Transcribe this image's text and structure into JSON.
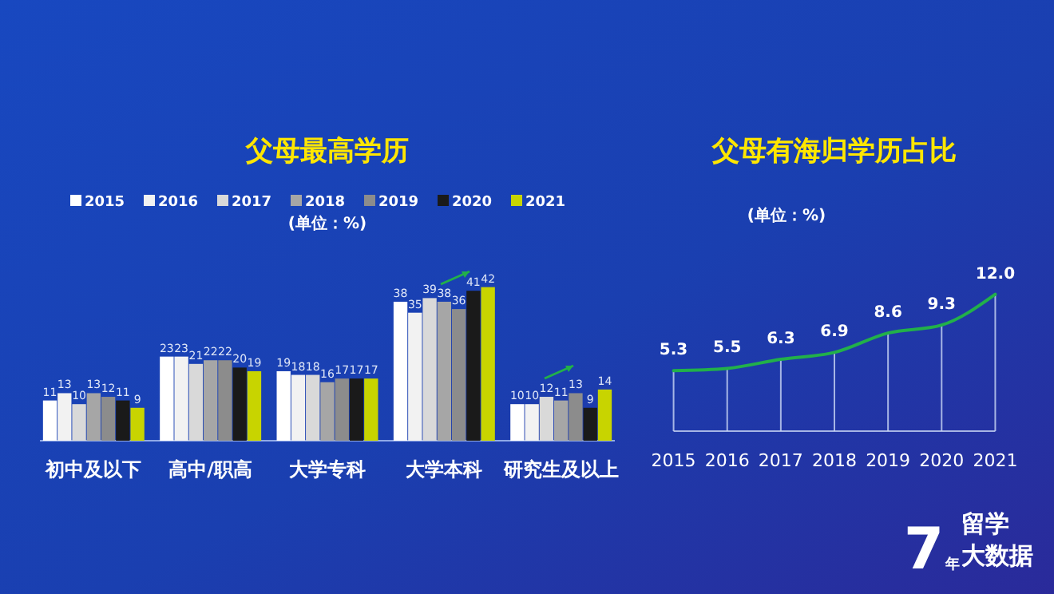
{
  "chart_data": [
    {
      "type": "bar",
      "title": "父母最高学历",
      "subtitle": "(单位：%)",
      "categories": [
        "初中及以下",
        "高中/职高",
        "大学专科",
        "大学本科",
        "研究生及以上"
      ],
      "tick_labels": "x",
      "data_labels": true,
      "legend": "top",
      "grid": false,
      "series": [
        {
          "name": "2015",
          "color": "#ffffff",
          "values": [
            11,
            23,
            19,
            38,
            10
          ]
        },
        {
          "name": "2016",
          "color": "#f2f2f2",
          "values": [
            13,
            23,
            18,
            35,
            10
          ]
        },
        {
          "name": "2017",
          "color": "#d9d9d9",
          "values": [
            10,
            21,
            18,
            39,
            12
          ]
        },
        {
          "name": "2018",
          "color": "#a6a6a6",
          "values": [
            13,
            22,
            16,
            38,
            11
          ]
        },
        {
          "name": "2019",
          "color": "#8c8c8c",
          "values": [
            12,
            22,
            17,
            36,
            13
          ]
        },
        {
          "name": "2020",
          "color": "#1a1a1a",
          "values": [
            11,
            20,
            17,
            41,
            9
          ]
        },
        {
          "name": "2021",
          "color": "#c8d400",
          "values": [
            9,
            19,
            17,
            42,
            14
          ]
        }
      ]
    },
    {
      "type": "line",
      "title": "父母有海归学历占比",
      "subtitle": "(单位：%)",
      "categories": [
        "2015",
        "2016",
        "2017",
        "2018",
        "2019",
        "2020",
        "2021"
      ],
      "tick_labels": "x",
      "grid": "x",
      "marker": "none",
      "line_style": "solid",
      "series": [
        {
          "color": "#22b04a",
          "values": [
            5.3,
            5.5,
            6.3,
            6.9,
            8.6,
            9.3,
            12.0
          ],
          "value_labels": [
            "5.3",
            "5.5",
            "6.3",
            "6.9",
            "8.6",
            "9.3",
            "12.0"
          ]
        }
      ],
      "annotations": [
        "7年",
        "留学",
        "大数据"
      ]
    }
  ]
}
